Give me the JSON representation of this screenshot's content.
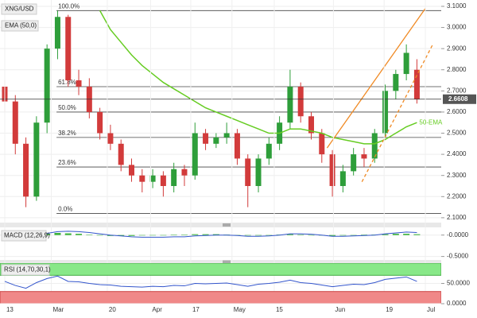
{
  "chart_data": [
    {
      "type": "candlestick",
      "title": "XNG/USD",
      "indicator": "EMA (50,0)",
      "x": [
        0,
        1,
        2,
        3,
        4,
        5,
        6,
        7,
        8,
        9,
        10,
        11,
        12,
        13,
        14,
        15,
        16,
        17,
        18,
        19,
        20,
        21,
        22,
        23,
        24,
        25,
        26,
        27,
        28,
        29,
        30,
        31,
        32,
        33,
        34,
        35,
        36,
        37,
        38,
        39
      ],
      "open": [
        2.72,
        2.65,
        2.45,
        2.2,
        2.55,
        2.9,
        3.05,
        2.75,
        2.72,
        2.6,
        2.5,
        2.45,
        2.35,
        2.3,
        2.27,
        2.3,
        2.25,
        2.33,
        2.3,
        2.5,
        2.45,
        2.48,
        2.5,
        2.38,
        2.25,
        2.38,
        2.45,
        2.55,
        2.72,
        2.58,
        2.5,
        2.4,
        2.25,
        2.32,
        2.4,
        2.38,
        2.5,
        2.7,
        2.78,
        2.8
      ],
      "high": [
        2.75,
        2.68,
        2.48,
        2.58,
        2.92,
        3.08,
        3.06,
        2.8,
        2.76,
        2.62,
        2.54,
        2.47,
        2.38,
        2.33,
        2.33,
        2.32,
        2.36,
        2.35,
        2.55,
        2.52,
        2.5,
        2.55,
        2.52,
        2.4,
        2.4,
        2.48,
        2.58,
        2.8,
        2.74,
        2.6,
        2.52,
        2.42,
        2.35,
        2.43,
        2.43,
        2.52,
        2.73,
        2.8,
        2.92,
        2.85
      ],
      "low": [
        2.6,
        2.4,
        2.15,
        2.18,
        2.5,
        2.85,
        2.72,
        2.68,
        2.57,
        2.47,
        2.42,
        2.32,
        2.27,
        2.22,
        2.24,
        2.2,
        2.22,
        2.25,
        2.28,
        2.42,
        2.43,
        2.45,
        2.35,
        2.15,
        2.22,
        2.35,
        2.42,
        2.52,
        2.55,
        2.47,
        2.36,
        2.2,
        2.22,
        2.3,
        2.34,
        2.36,
        2.48,
        2.66,
        2.75,
        2.64
      ],
      "close": [
        2.65,
        2.45,
        2.2,
        2.55,
        2.9,
        3.05,
        2.75,
        2.72,
        2.6,
        2.5,
        2.45,
        2.35,
        2.3,
        2.27,
        2.3,
        2.25,
        2.33,
        2.3,
        2.5,
        2.45,
        2.48,
        2.5,
        2.38,
        2.25,
        2.38,
        2.45,
        2.55,
        2.72,
        2.58,
        2.5,
        2.4,
        2.25,
        2.32,
        2.4,
        2.38,
        2.5,
        2.7,
        2.78,
        2.88,
        2.66
      ],
      "up_color": "#2e9e3a",
      "down_color": "#d23b3b",
      "ema": {
        "name": "50-EMA",
        "color": "#66cc22",
        "values": [
          null,
          null,
          null,
          null,
          null,
          null,
          null,
          null,
          null,
          3.08,
          2.99,
          2.93,
          2.87,
          2.82,
          2.78,
          2.74,
          2.71,
          2.68,
          2.65,
          2.62,
          2.6,
          2.58,
          2.56,
          2.54,
          2.52,
          2.5,
          2.5,
          2.52,
          2.52,
          2.51,
          2.5,
          2.48,
          2.47,
          2.46,
          2.45,
          2.45,
          2.47,
          2.5,
          2.53,
          2.55
        ]
      },
      "fib_levels": [
        {
          "value": 3.08,
          "label": "100.0%"
        },
        {
          "value": 2.72,
          "label": "61.8%"
        },
        {
          "value": 2.6,
          "label": "50.0%"
        },
        {
          "value": 2.48,
          "label": "38.2%"
        },
        {
          "value": 2.34,
          "label": "23.6%"
        },
        {
          "value": 2.12,
          "label": "0.0%"
        }
      ],
      "trendlines": [
        {
          "color": "#f08a24",
          "dash": false,
          "x": [
            30.5,
            39.8
          ],
          "y": [
            2.43,
            3.09
          ]
        },
        {
          "color": "#f08a24",
          "dash": true,
          "x": [
            33.8,
            40.5
          ],
          "y": [
            2.27,
            2.92
          ]
        }
      ],
      "last_price": 2.6608,
      "xlim": [
        -0.45,
        41.3
      ],
      "ylim": [
        2.077,
        3.13
      ],
      "yticks": [
        {
          "value": 3.1,
          "label": "3.1000"
        },
        {
          "value": 3.0,
          "label": "3.0000"
        },
        {
          "value": 2.9,
          "label": "2.9000"
        },
        {
          "value": 2.8,
          "label": "2.8000"
        },
        {
          "value": 2.7,
          "label": "2.7000"
        },
        {
          "value": 2.6,
          "label": "2.6000"
        },
        {
          "value": 2.5,
          "label": "2.5000"
        },
        {
          "value": 2.4,
          "label": "2.4000"
        },
        {
          "value": 2.3,
          "label": "2.3000"
        },
        {
          "value": 2.2,
          "label": "2.2000"
        },
        {
          "value": 2.1,
          "label": "2.1000"
        }
      ],
      "xticks": [
        {
          "value": 0,
          "label": "13"
        },
        {
          "value": 4.4,
          "label": "Mar"
        },
        {
          "value": 9.7,
          "label": "20"
        },
        {
          "value": 13.8,
          "label": "Apr"
        },
        {
          "value": 17.6,
          "label": "17"
        },
        {
          "value": 21.5,
          "label": "May"
        },
        {
          "value": 25.5,
          "label": "15"
        },
        {
          "value": 31.1,
          "label": "Jun"
        },
        {
          "value": 35.9,
          "label": "19"
        },
        {
          "value": 39.8,
          "label": "Jul"
        }
      ]
    },
    {
      "type": "macd",
      "title": "MACD (12,26,9)",
      "macd": {
        "color": "#3355cc",
        "values": [
          0.02,
          0.0,
          -0.03,
          -0.01,
          0.04,
          0.08,
          0.09,
          0.08,
          0.06,
          0.03,
          0.0,
          -0.02,
          -0.04,
          -0.05,
          -0.05,
          -0.05,
          -0.04,
          -0.04,
          -0.02,
          -0.01,
          0.0,
          0.0,
          -0.01,
          -0.03,
          -0.03,
          -0.02,
          0.0,
          0.03,
          0.03,
          0.02,
          0.0,
          -0.03,
          -0.03,
          -0.02,
          -0.01,
          0.0,
          0.03,
          0.05,
          0.07,
          0.06
        ]
      },
      "histogram": {
        "color": "#3cb33c",
        "values": [
          0.02,
          0.01,
          -0.01,
          0.0,
          0.03,
          0.05,
          0.04,
          0.03,
          0.01,
          -0.01,
          -0.02,
          -0.02,
          -0.02,
          -0.01,
          0.0,
          0.0,
          0.01,
          0.01,
          0.02,
          0.02,
          0.02,
          0.01,
          0.0,
          -0.01,
          -0.01,
          0.0,
          0.01,
          0.02,
          0.01,
          0.0,
          -0.01,
          -0.02,
          -0.01,
          0.0,
          0.01,
          0.01,
          0.02,
          0.03,
          0.03,
          0.02
        ]
      },
      "ylim": [
        -0.6,
        0.18
      ],
      "yticks": [
        {
          "value": 0,
          "label": "-0.0000"
        },
        {
          "value": -0.5,
          "label": "-0.5000"
        }
      ]
    },
    {
      "type": "rsi",
      "title": "RSI (14,70,30,1)",
      "color": "#3355cc",
      "overbought": 70,
      "oversold": 30,
      "values": [
        55,
        45,
        38,
        52,
        62,
        68,
        55,
        54,
        50,
        47,
        46,
        43,
        42,
        41,
        43,
        42,
        45,
        44,
        50,
        49,
        50,
        51,
        47,
        43,
        48,
        50,
        53,
        58,
        52,
        50,
        46,
        42,
        45,
        48,
        47,
        52,
        60,
        63,
        66,
        55
      ],
      "ylim": [
        0,
        100
      ],
      "yticks": [
        {
          "value": 50,
          "label": "50.0000"
        },
        {
          "value": 0,
          "label": "0.0000"
        }
      ]
    }
  ]
}
